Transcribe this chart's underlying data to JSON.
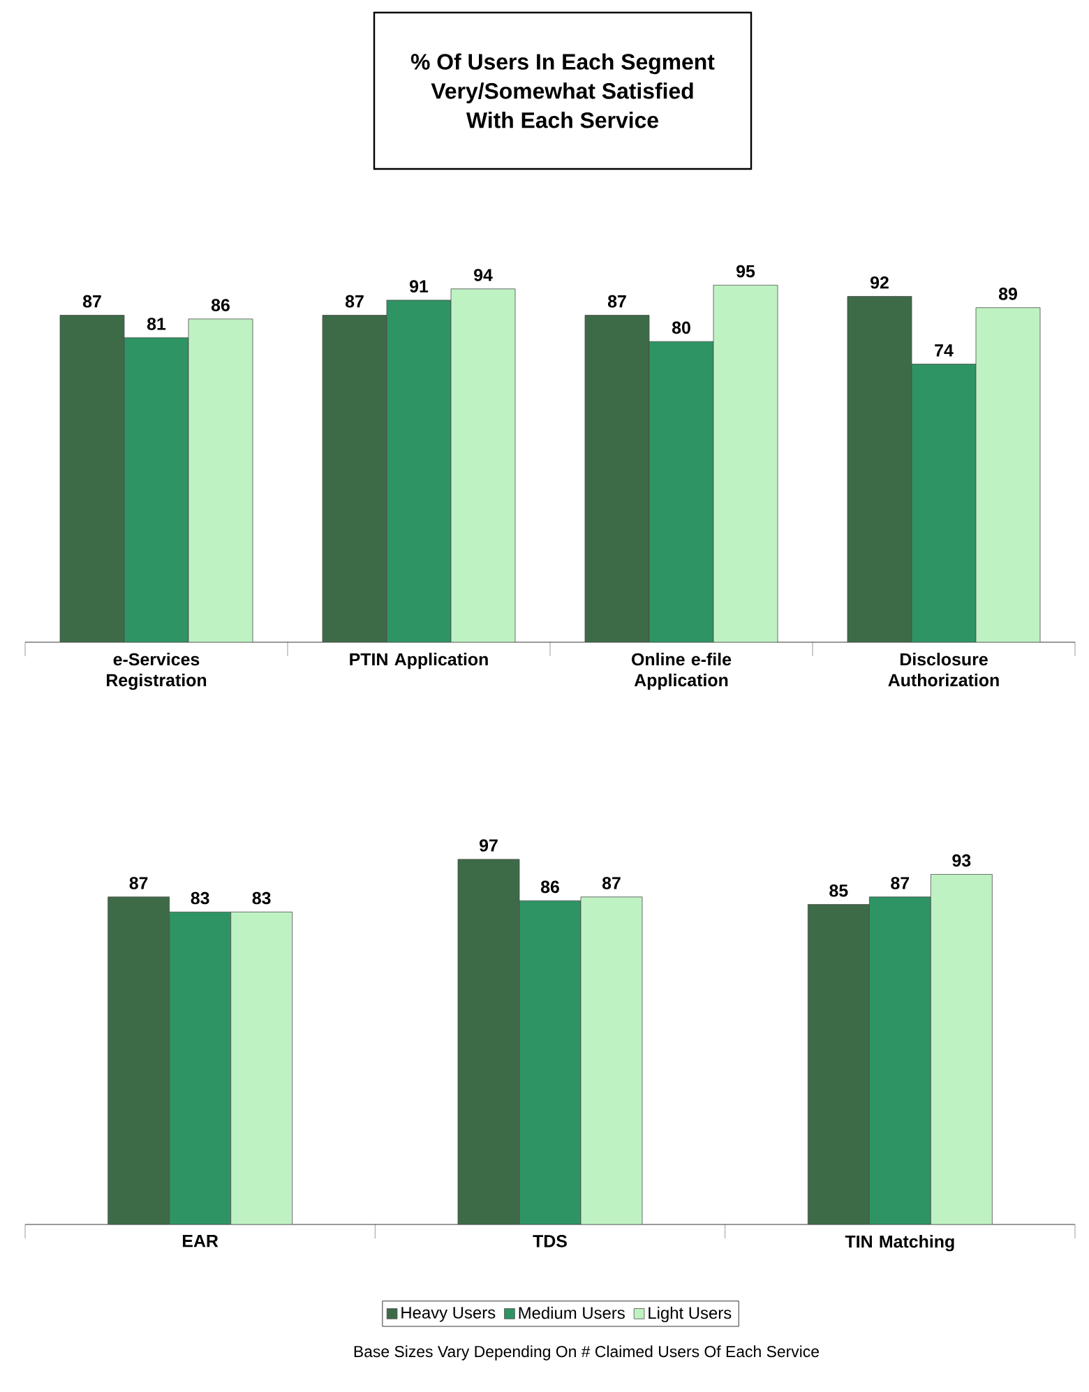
{
  "chart_data": [
    {
      "type": "bar",
      "title": "% Of Users In Each Segment\nVery/Somewhat Satisfied\nWith Each Service",
      "categories": [
        "e-Services Registration",
        "PTIN Application",
        "Online e-file Application",
        "Disclosure Authorization"
      ],
      "series": [
        {
          "color": "#3d6b47",
          "values": [
            87,
            87,
            87,
            92
          ]
        },
        {
          "color": "#2e9464",
          "values": [
            81,
            91,
            80,
            74
          ]
        },
        {
          "color": "#bff2c3",
          "values": [
            86,
            94,
            95,
            89
          ]
        }
      ],
      "data_labels": true
    },
    {
      "type": "bar",
      "categories": [
        "EAR",
        "TDS",
        "TIN Matching"
      ],
      "series": [
        {
          "name": "Heavy Users",
          "color": "#3d6b47",
          "values": [
            87,
            97,
            85
          ]
        },
        {
          "name": "Medium Users",
          "color": "#2e9464",
          "values": [
            83,
            86,
            87
          ]
        },
        {
          "name": "Light Users",
          "color": "#bff2c3",
          "values": [
            83,
            87,
            93
          ]
        }
      ],
      "data_labels": true,
      "legend": "bottom",
      "annotations": [
        "Base Sizes Vary Depending On # Claimed Users Of Each Service"
      ]
    }
  ]
}
